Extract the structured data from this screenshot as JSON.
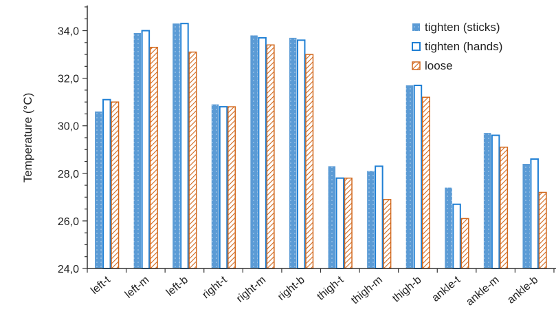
{
  "chart_data": {
    "type": "bar",
    "title": "",
    "xlabel": "",
    "ylabel": "Temperature (°C)",
    "ylim": [
      24.0,
      35.0
    ],
    "yticks": [
      "24,0",
      "26,0",
      "28,0",
      "30,0",
      "32,0",
      "34,0"
    ],
    "categories": [
      "left-t",
      "left-m",
      "left-b",
      "right-t",
      "right-m",
      "right-b",
      "thigh-t",
      "thigh-m",
      "thigh-b",
      "ankle-t",
      "ankle-m",
      "ankle-b"
    ],
    "series": [
      {
        "name": "tighten (sticks)",
        "style": "solid-dotted",
        "color": "#5b9bd5",
        "values": [
          30.6,
          33.9,
          34.3,
          30.9,
          33.8,
          33.7,
          28.3,
          28.1,
          31.7,
          27.4,
          29.7,
          28.4
        ]
      },
      {
        "name": "tighten (hands)",
        "style": "outline",
        "color": "#1f7fd4",
        "values": [
          31.1,
          34.0,
          34.3,
          30.8,
          33.7,
          33.6,
          27.8,
          28.3,
          31.7,
          26.7,
          29.6,
          28.6
        ]
      },
      {
        "name": "loose",
        "style": "hatched",
        "color": "#d2691e",
        "values": [
          31.0,
          33.3,
          33.1,
          30.8,
          33.4,
          33.0,
          27.8,
          26.9,
          31.2,
          26.1,
          29.1,
          27.2
        ]
      }
    ],
    "legend_position": "top-right",
    "grid": false
  }
}
